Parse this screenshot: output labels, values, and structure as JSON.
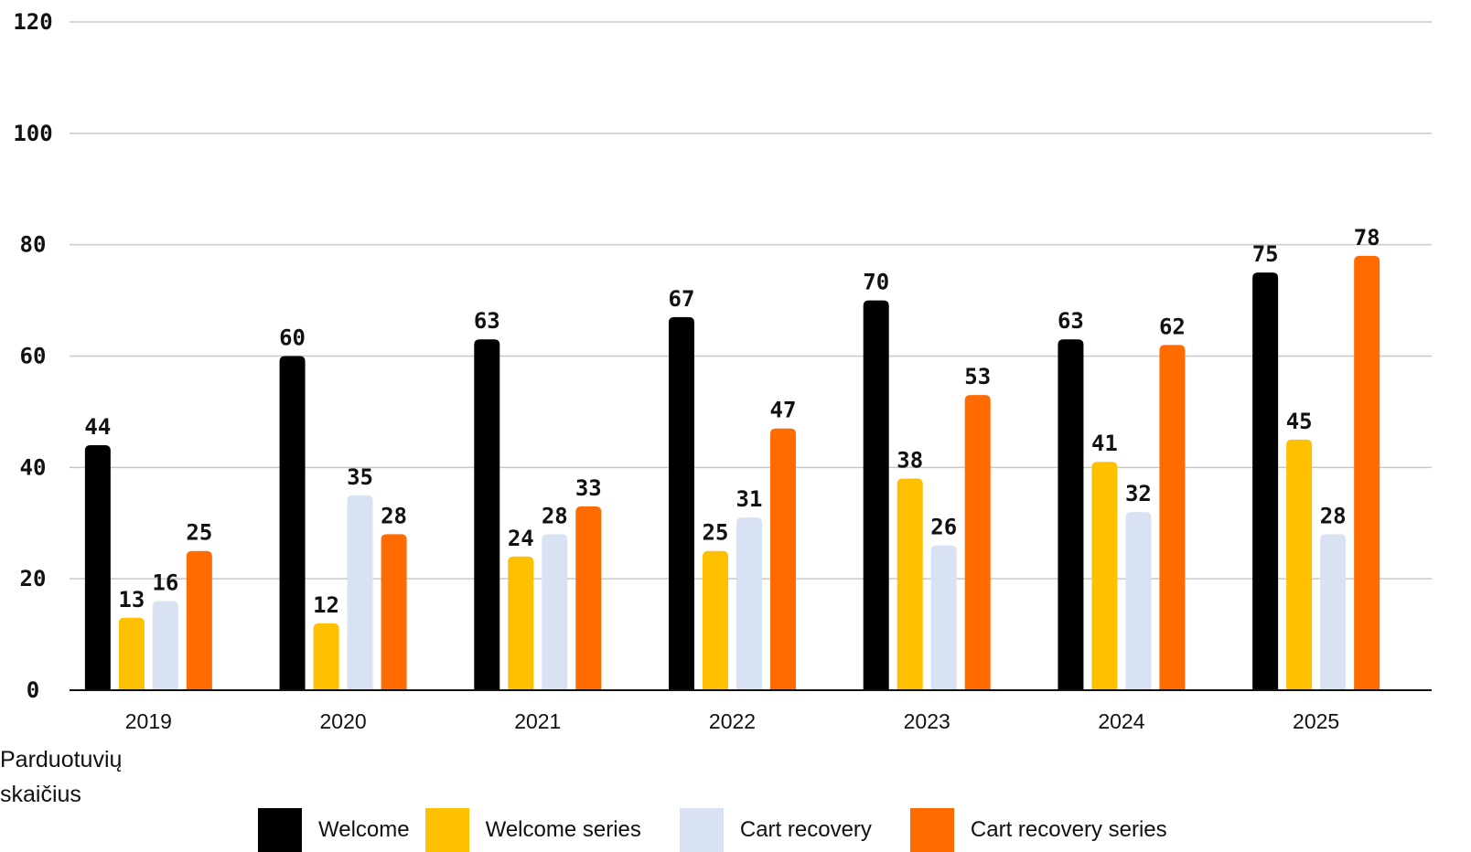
{
  "chart_data": {
    "type": "bar",
    "categories": [
      "2019",
      "2020",
      "2021",
      "2022",
      "2023",
      "2024",
      "2025"
    ],
    "series": [
      {
        "name": "Welcome",
        "color": "#000000",
        "values": [
          44,
          60,
          63,
          67,
          70,
          63,
          75
        ]
      },
      {
        "name": "Welcome series",
        "color": "#FFC000",
        "values": [
          13,
          12,
          24,
          25,
          38,
          41,
          45
        ]
      },
      {
        "name": "Cart recovery",
        "color": "#D9E2F3",
        "values": [
          16,
          35,
          28,
          31,
          26,
          32,
          28
        ]
      },
      {
        "name": "Cart recovery series",
        "color": "#FF6B00",
        "values": [
          25,
          28,
          33,
          47,
          53,
          62,
          78
        ]
      }
    ],
    "yticks": [
      "0",
      "20",
      "40",
      "60",
      "80",
      "100",
      "120"
    ],
    "ylim": [
      0,
      120
    ],
    "ylabel_lines": [
      "Parduotuvių",
      "skaičius"
    ],
    "grid": true,
    "legend_position": "bottom"
  }
}
